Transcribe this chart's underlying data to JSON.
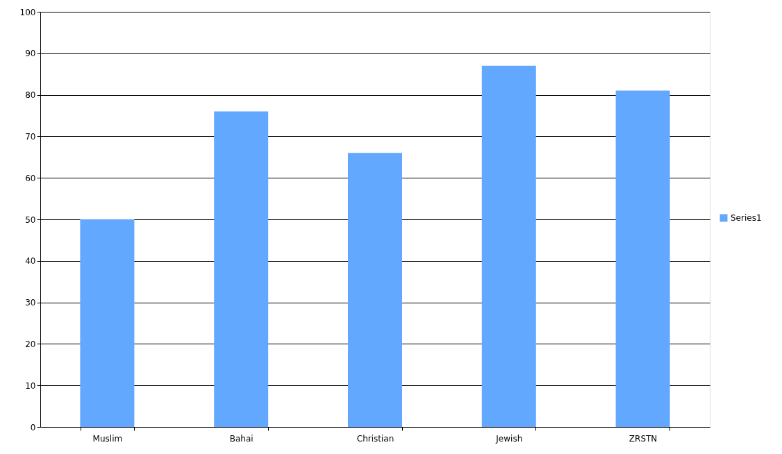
{
  "chart_data": {
    "type": "bar",
    "categories": [
      "Muslim",
      "Bahai",
      "Christian",
      "Jewish",
      "ZRSTN"
    ],
    "series": [
      {
        "name": "Series1",
        "color": "#63a8ff",
        "values": [
          50,
          76,
          66,
          87,
          81
        ]
      }
    ],
    "ylim": [
      0,
      100
    ],
    "yticks": [
      0,
      10,
      20,
      30,
      40,
      50,
      60,
      70,
      80,
      90,
      100
    ],
    "grid": "y",
    "legend": "right"
  }
}
